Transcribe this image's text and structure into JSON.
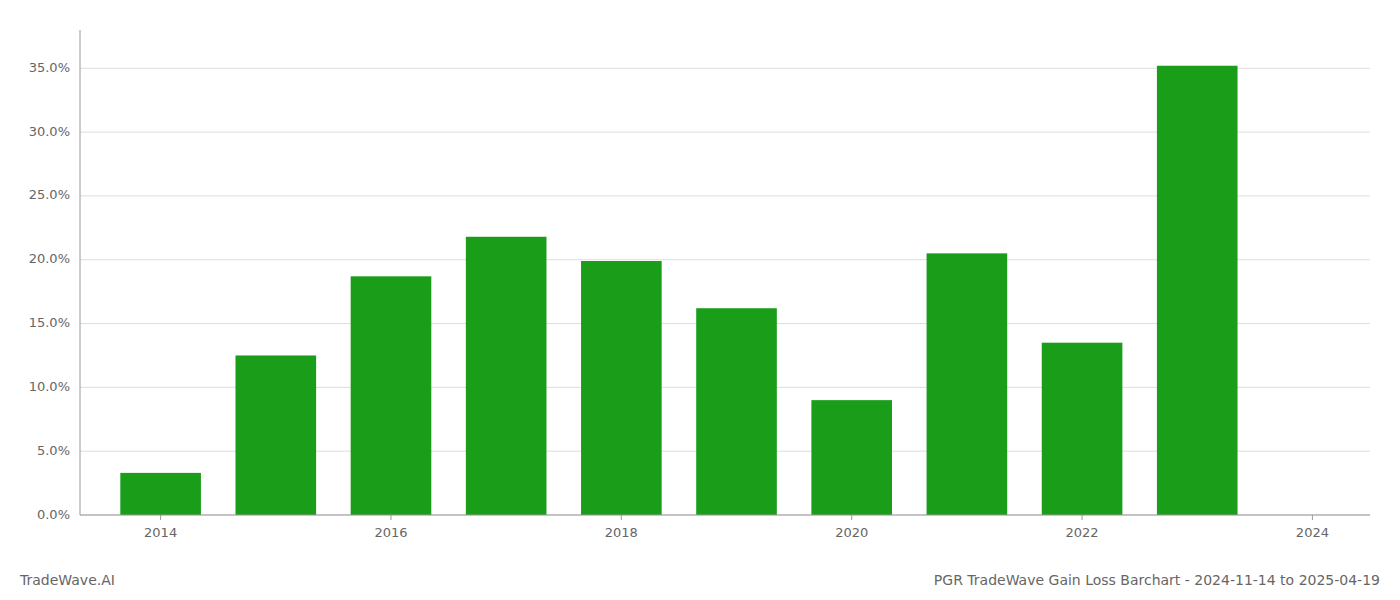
{
  "chart_data": {
    "type": "bar",
    "title": "PGR TradeWave Gain Loss Barchart - 2024-11-14 to 2025-04-19",
    "annotations": [
      "TradeWave.AI"
    ],
    "x": [
      2014,
      2015,
      2016,
      2017,
      2018,
      2019,
      2020,
      2021,
      2022,
      2023
    ],
    "values": [
      0.033,
      0.125,
      0.187,
      0.218,
      0.199,
      0.162,
      0.09,
      0.205,
      0.135,
      0.352
    ],
    "color": "#1a9e1a",
    "xlim": [
      2013.3,
      2024.5
    ],
    "xticks": [
      2014,
      2016,
      2018,
      2020,
      2022,
      2024
    ],
    "ylim": [
      0.0,
      0.38
    ],
    "yticks": [
      {
        "value": 0.0,
        "label": "0.0%"
      },
      {
        "value": 0.05,
        "label": "5.0%"
      },
      {
        "value": 0.1,
        "label": "10.0%"
      },
      {
        "value": 0.15,
        "label": "15.0%"
      },
      {
        "value": 0.2,
        "label": "20.0%"
      },
      {
        "value": 0.25,
        "label": "25.0%"
      },
      {
        "value": 0.3,
        "label": "30.0%"
      },
      {
        "value": 0.35,
        "label": "35.0%"
      }
    ],
    "grid": true
  }
}
